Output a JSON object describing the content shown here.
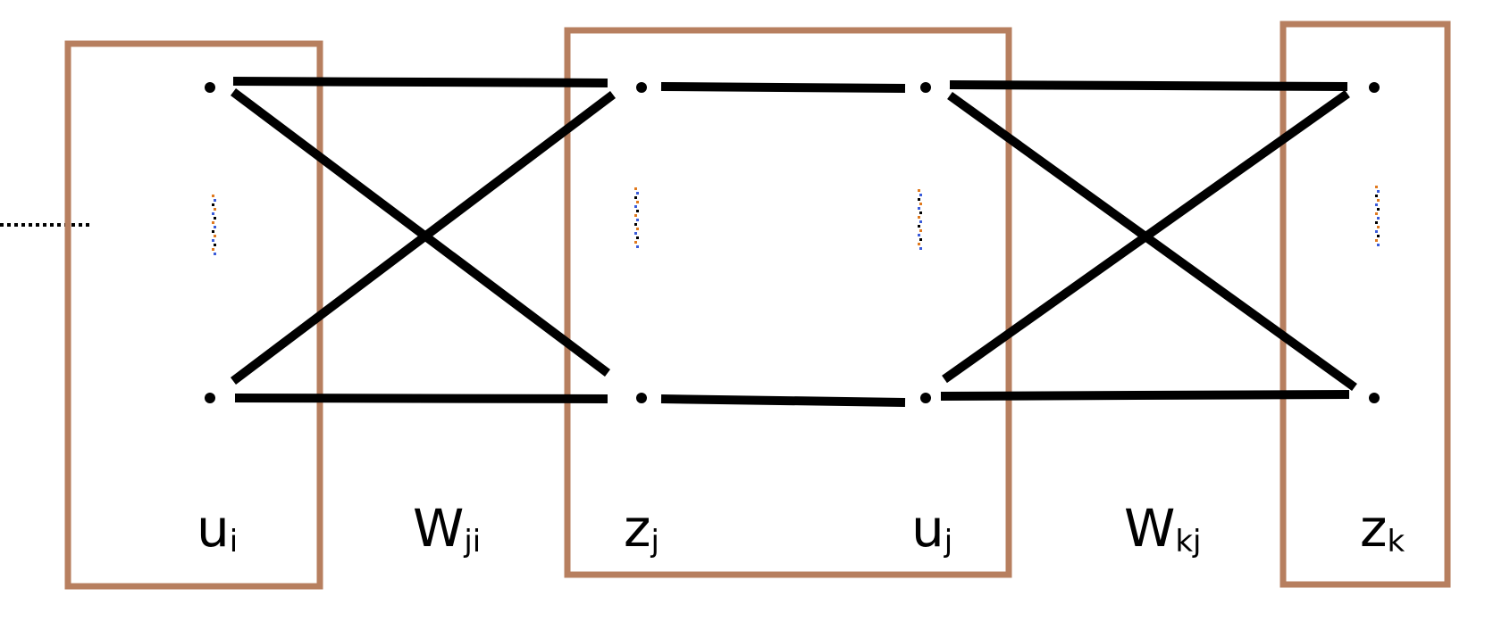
{
  "diagram": {
    "description_type": "neural-network-layers",
    "colors": {
      "box_border": "#b77f5f",
      "line": "#000000",
      "dot": "#000000",
      "ellipsis_dot_orange": "#e07a1f",
      "ellipsis_dot_blue": "#3a5bd9"
    },
    "labels": {
      "input_unit": {
        "main": "u",
        "sub": "i"
      },
      "weight_ji": {
        "main": "W",
        "sub": "ji"
      },
      "hidden_output": {
        "main": "z",
        "sub": "j"
      },
      "hidden_input": {
        "main": "u",
        "sub": "j"
      },
      "weight_kj": {
        "main": "W",
        "sub": "kj"
      },
      "output_unit": {
        "main": "z",
        "sub": "k"
      }
    }
  }
}
